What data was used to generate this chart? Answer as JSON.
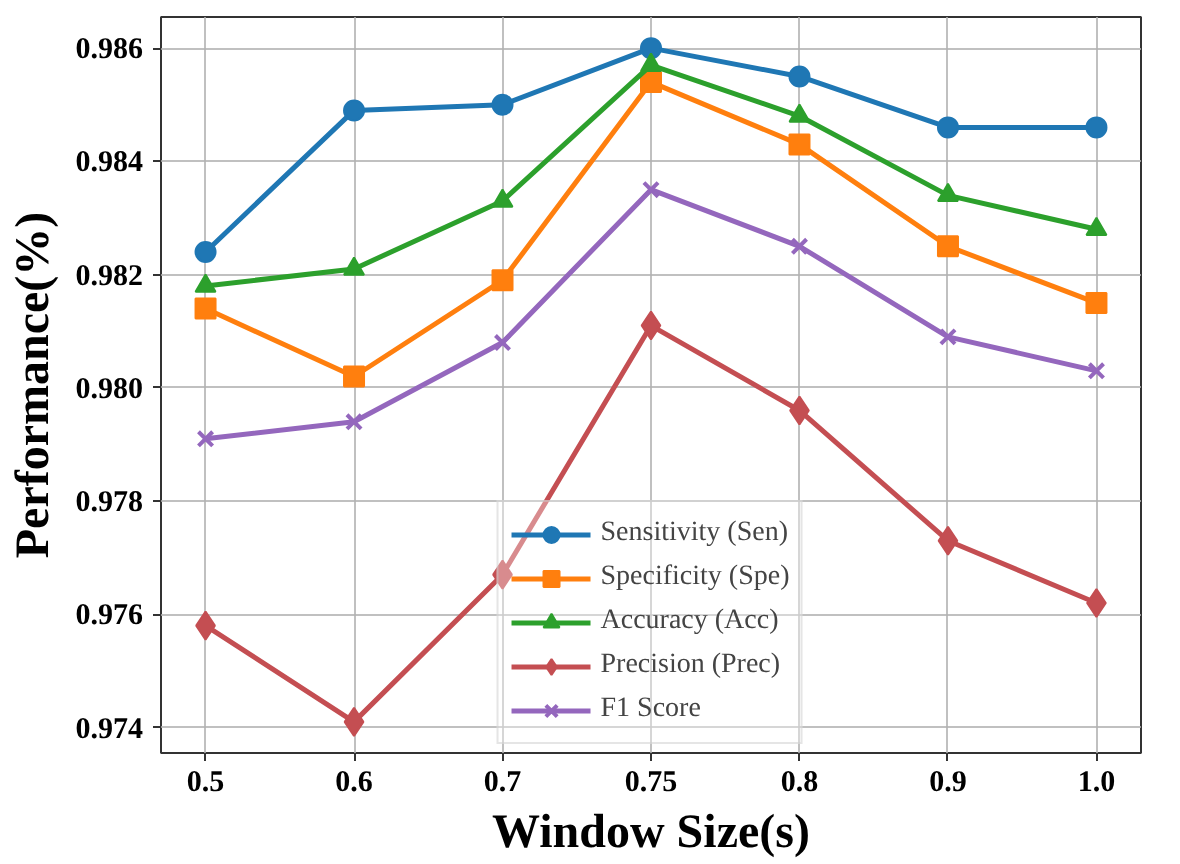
{
  "chart_data": {
    "type": "line",
    "xlabel": "Window Size(s)",
    "ylabel": "Performance(%)",
    "categories": [
      "0.5",
      "0.6",
      "0.7",
      "0.75",
      "0.8",
      "0.9",
      "1.0"
    ],
    "ylim": [
      0.97355,
      0.98655
    ],
    "yticks": [
      0.974,
      0.976,
      0.978,
      {
        "value": 0.98,
        "label": "0.980"
      },
      0.982,
      0.984,
      0.986
    ],
    "grid": true,
    "legend": "bottom",
    "series": [
      {
        "name": "Sensitivity (Sen)",
        "color": "#1f77b4",
        "marker": "circle",
        "values": [
          0.9824,
          0.9849,
          0.985,
          0.986,
          0.9855,
          0.9846,
          0.9846
        ]
      },
      {
        "name": "Specificity (Spe)",
        "color": "#ff7f0e",
        "marker": "square",
        "values": [
          0.9814,
          0.9802,
          0.9819,
          0.9854,
          0.9843,
          0.9825,
          0.9815
        ]
      },
      {
        "name": "Accuracy (Acc)",
        "color": "#2ca02c",
        "marker": "triangle",
        "values": [
          0.9818,
          0.9821,
          0.9833,
          0.9857,
          0.9848,
          0.9834,
          0.9828
        ]
      },
      {
        "name": "Precision (Prec)",
        "color": "#c44e52",
        "marker": "diamond",
        "values": [
          0.9758,
          0.9741,
          0.9767,
          0.9811,
          0.9796,
          0.9773,
          0.9762
        ]
      },
      {
        "name": "F1 Score",
        "color": "#9467bd",
        "marker": "x",
        "values": [
          0.9791,
          0.9794,
          0.9808,
          0.9835,
          0.9825,
          0.9809,
          0.9803
        ]
      }
    ]
  }
}
